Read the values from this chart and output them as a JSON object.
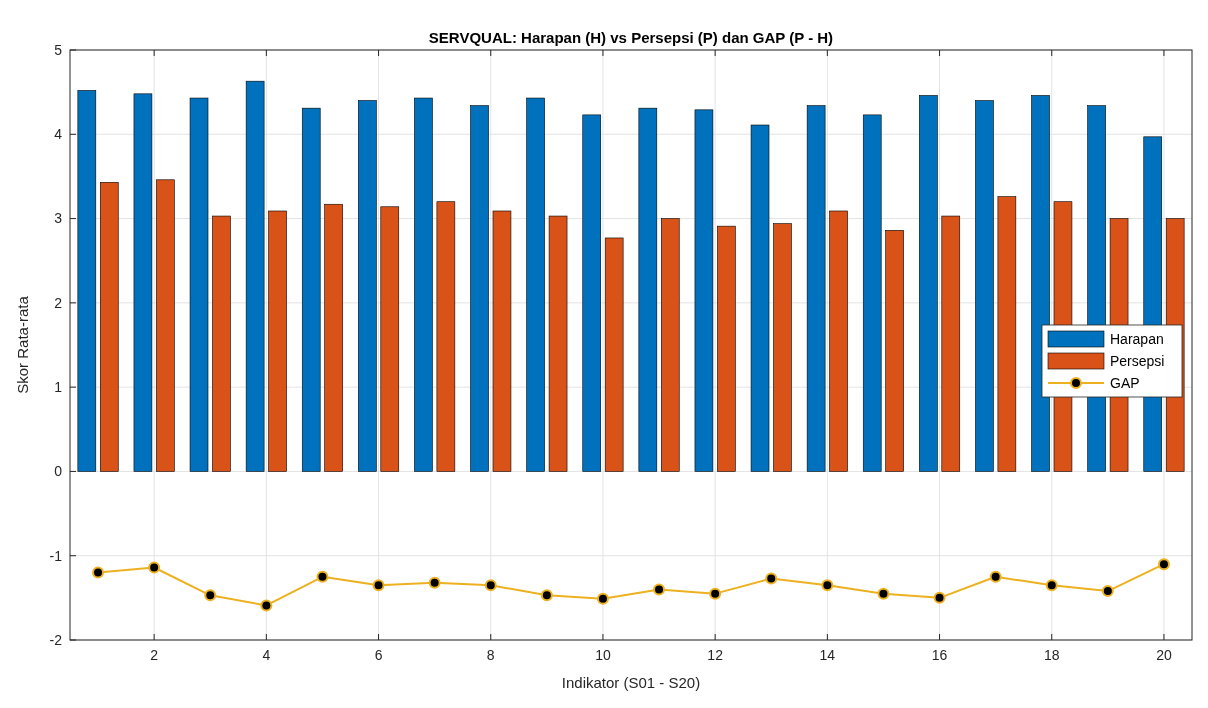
{
  "chart_data": {
    "type": "bar",
    "title": "SERVQUAL: Harapan (H) vs Persepsi (P) dan GAP (P - H)",
    "xlabel": "Indikator (S01 - S20)",
    "ylabel": "Skor Rata-rata",
    "x": [
      1,
      2,
      3,
      4,
      5,
      6,
      7,
      8,
      9,
      10,
      11,
      12,
      13,
      14,
      15,
      16,
      17,
      18,
      19,
      20
    ],
    "series": [
      {
        "name": "Harapan",
        "color": "#0072bd",
        "values": [
          4.52,
          4.48,
          4.43,
          4.63,
          4.31,
          4.4,
          4.43,
          4.34,
          4.43,
          4.23,
          4.31,
          4.29,
          4.11,
          4.34,
          4.23,
          4.46,
          4.4,
          4.46,
          4.34,
          3.97
        ]
      },
      {
        "name": "Persepsi",
        "color": "#d95319",
        "values": [
          3.43,
          3.46,
          3.03,
          3.09,
          3.17,
          3.14,
          3.2,
          3.09,
          3.03,
          2.77,
          3.0,
          2.91,
          2.94,
          3.09,
          2.86,
          3.03,
          3.26,
          3.2,
          3.0,
          3.0
        ]
      },
      {
        "name": "GAP",
        "type": "line",
        "color": "#edb120",
        "marker": "circle",
        "line_style": "solid",
        "values": [
          -1.2,
          -1.14,
          -1.47,
          -1.59,
          -1.25,
          -1.35,
          -1.32,
          -1.35,
          -1.47,
          -1.51,
          -1.4,
          -1.45,
          -1.27,
          -1.35,
          -1.45,
          -1.5,
          -1.25,
          -1.35,
          -1.42,
          -1.1
        ]
      }
    ],
    "xlim": [
      0.5,
      20.5
    ],
    "xticks": [
      2,
      4,
      6,
      8,
      10,
      12,
      14,
      16,
      18,
      20
    ],
    "ylim": [
      -2,
      5
    ],
    "yticks": [
      -2,
      -1,
      0,
      1,
      2,
      3,
      4,
      5
    ],
    "grid": true,
    "legend": "right"
  }
}
